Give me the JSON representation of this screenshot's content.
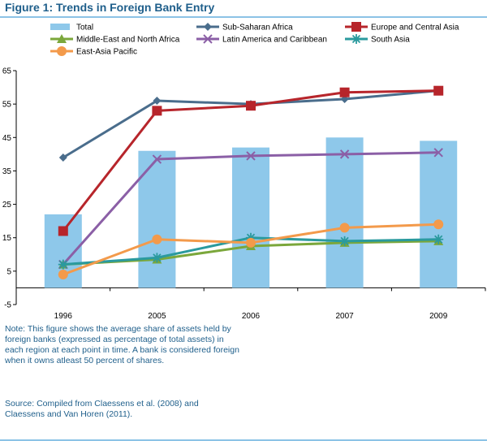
{
  "figure": {
    "title": "Figure 1: Trends in Foreign Bank Entry",
    "note": "Note: This figure shows the average share of assets held by foreign banks (expressed as percentage of total assets) in each region at each point in time. A bank is considered foreign when it owns atleast 50 percent of shares.",
    "source": "Source: Compiled from Claessens et al. (2008) and Claessens and Van Horen (2011)."
  },
  "chart_data": {
    "type": "bar+line",
    "categories": [
      "1996",
      "2005",
      "2006",
      "2007",
      "2009"
    ],
    "ylim": [
      -5,
      65
    ],
    "yticks": [
      -5,
      5,
      15,
      25,
      35,
      45,
      55,
      65
    ],
    "grid": false,
    "legend_position": "top",
    "bars": {
      "name": "Total",
      "color": "#8ec8ea",
      "values": [
        22,
        41,
        42,
        45,
        44
      ]
    },
    "series": [
      {
        "name": "Sub-Saharan Africa",
        "color": "#4a6d8c",
        "marker": "diamond",
        "values": [
          39,
          56,
          55,
          56.5,
          59
        ]
      },
      {
        "name": "Europe and Central Asia",
        "color": "#b7252b",
        "marker": "square",
        "values": [
          17,
          53,
          54.5,
          58.5,
          59
        ]
      },
      {
        "name": "Middle-East and North Africa",
        "color": "#7ba73b",
        "marker": "triangle",
        "values": [
          7,
          8.5,
          12.5,
          13.5,
          14
        ]
      },
      {
        "name": "Latin America and Caribbean",
        "color": "#8b5fa6",
        "marker": "x",
        "values": [
          7,
          38.5,
          39.5,
          40,
          40.5
        ]
      },
      {
        "name": "South Asia",
        "color": "#2a9a9e",
        "marker": "star",
        "values": [
          7,
          9,
          15,
          14,
          14.5
        ]
      },
      {
        "name": "East-Asia Pacific",
        "color": "#f39a4b",
        "marker": "circle",
        "values": [
          4,
          14.5,
          13.5,
          18,
          19
        ]
      }
    ]
  }
}
